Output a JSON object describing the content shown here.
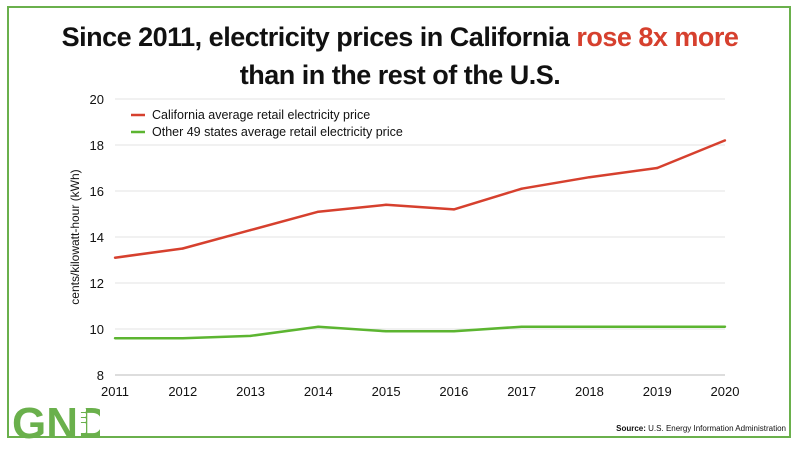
{
  "title": {
    "line1_prefix": "Since 2011, electricity prices in California ",
    "line1_highlight": "rose 8x more",
    "line2": "than in the rest of the U.S.",
    "highlight_color": "#d6402e"
  },
  "source": {
    "label": "Source:",
    "text": "U.S. Energy Information Administration"
  },
  "logo": {
    "text": "GND",
    "icon": "raised-fist-icon",
    "color": "#6ab04c"
  },
  "chart_data": {
    "type": "line",
    "x": [
      2011,
      2012,
      2013,
      2014,
      2015,
      2016,
      2017,
      2018,
      2019,
      2020
    ],
    "series": [
      {
        "name": "California average retail electricity price",
        "color": "#d6402e",
        "values": [
          13.1,
          13.5,
          14.3,
          15.1,
          15.4,
          15.2,
          16.1,
          16.6,
          17.0,
          18.2
        ]
      },
      {
        "name": "Other 49 states average retail electricity price",
        "color": "#5cb531",
        "values": [
          9.6,
          9.6,
          9.7,
          10.1,
          9.9,
          9.9,
          10.1,
          10.1,
          10.1,
          10.1
        ]
      }
    ],
    "xlabel": "",
    "ylabel": "cents/kilowatt-hour (kWh)",
    "ylim": [
      8,
      20
    ],
    "yticks": [
      8,
      10,
      12,
      14,
      16,
      18,
      20
    ],
    "grid": true,
    "legend_position": "top-left"
  }
}
